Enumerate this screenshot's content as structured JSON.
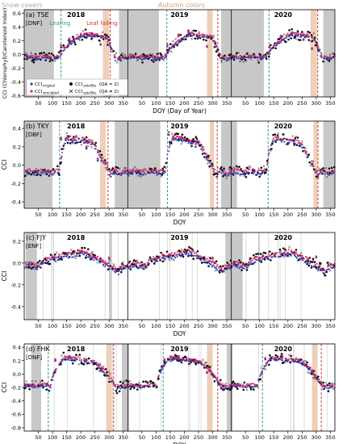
{
  "figure": {
    "top_labels": {
      "snow": "Snow covers",
      "autumn": "Autumn colors",
      "leafing": "Leafing",
      "falling": "Leaf falling"
    },
    "legend": {
      "original": "CCI",
      "original_sub": "original",
      "simulated": "CCI",
      "simulated_sub": "simulated",
      "sat_good": "CCI",
      "sat_good_sub": "satellite",
      "sat_good_qa": "(QA = 2)",
      "sat_bad": "CCI",
      "sat_bad_sub": "satellite",
      "sat_bad_qa": "(QA ≠ 2)"
    },
    "colors": {
      "original": "#2e3fbf",
      "simulated": "#e0245e",
      "satellite": "#111111",
      "snow_band": "#c8c8c8",
      "autumn_band": "#efcfb8",
      "leafing_line": "#2f9b82",
      "falling_line": "#d23b2b"
    }
  },
  "chart_data": [
    {
      "type": "scatter",
      "panel": "(a) TSE",
      "forest": "[DNF]",
      "ylabel": "CCI (Chlorophyll/Carotenoid Index)",
      "xlabel": "DOY (Day of Year)",
      "years": [
        "2018",
        "2019",
        "2020"
      ],
      "ylim": [
        -0.62,
        0.65
      ],
      "yticks": [
        -0.6,
        -0.4,
        -0.2,
        0.0,
        0.2,
        0.4,
        0.6
      ],
      "xticks": [
        50,
        100,
        150,
        200,
        250,
        300,
        350
      ],
      "snow": [
        [
          [
            1,
            105
          ],
          [
            335,
            365
          ]
        ],
        [
          [
            1,
            110
          ],
          [
            330,
            365
          ]
        ],
        [
          [
            1,
            115
          ],
          [
            325,
            365
          ]
        ]
      ],
      "autumn": [
        [
          [
            278,
            300
          ]
        ],
        [
          [
            280,
            300
          ]
        ],
        [
          [
            280,
            302
          ]
        ]
      ],
      "leafing": [
        130,
        138,
        133
      ],
      "falling": [
        304,
        318,
        305
      ],
      "curve": {
        "base": -0.02,
        "peak": 0.3,
        "green": 128,
        "maxd": 215,
        "senesce": 290,
        "fall": 310,
        "sharp": false
      },
      "series": [
        {
          "name": "CCIoriginal",
          "points": [
            [
              2018,
              130,
              0.1
            ],
            [
              2018,
              160,
              0.2
            ],
            [
              2018,
              200,
              0.27
            ],
            [
              2018,
              240,
              0.24
            ],
            [
              2018,
              270,
              0.14
            ],
            [
              2019,
              140,
              0.12
            ],
            [
              2019,
              180,
              0.27
            ],
            [
              2019,
              215,
              0.32
            ],
            [
              2019,
              250,
              0.25
            ],
            [
              2019,
              280,
              0.11
            ],
            [
              2020,
              135,
              0.1
            ],
            [
              2020,
              175,
              0.24
            ],
            [
              2020,
              215,
              0.3
            ],
            [
              2020,
              255,
              0.21
            ],
            [
              2020,
              285,
              0.08
            ]
          ]
        },
        {
          "name": "CCIsimulated",
          "points": [
            [
              2018,
              130,
              0.13
            ],
            [
              2018,
              160,
              0.23
            ],
            [
              2018,
              200,
              0.3
            ],
            [
              2018,
              240,
              0.26
            ],
            [
              2018,
              270,
              0.15
            ],
            [
              2019,
              140,
              0.15
            ],
            [
              2019,
              180,
              0.29
            ],
            [
              2019,
              215,
              0.34
            ],
            [
              2019,
              250,
              0.27
            ],
            [
              2019,
              280,
              0.12
            ],
            [
              2020,
              135,
              0.12
            ],
            [
              2020,
              175,
              0.27
            ],
            [
              2020,
              215,
              0.32
            ],
            [
              2020,
              255,
              0.22
            ],
            [
              2020,
              285,
              0.09
            ]
          ]
        }
      ]
    },
    {
      "type": "scatter",
      "panel": "(b) TKY",
      "forest": "[DBF]",
      "ylabel": "CCI",
      "xlabel": "DOY",
      "years": [
        "2018",
        "2019",
        "2020"
      ],
      "ylim": [
        -0.47,
        0.48
      ],
      "yticks": [
        -0.4,
        -0.2,
        0.0,
        0.2,
        0.4
      ],
      "xticks": [
        50,
        100,
        150,
        200,
        250,
        300,
        350
      ],
      "snow": [
        [
          [
            1,
            100
          ],
          [
            320,
            365
          ]
        ],
        [
          [
            1,
            115
          ],
          [
            330,
            365
          ]
        ],
        [
          [
            1,
            20
          ],
          [
            325,
            365
          ]
        ]
      ],
      "autumn": [
        [
          [
            268,
            288
          ]
        ],
        [
          [
            290,
            305
          ]
        ],
        [
          [
            290,
            305
          ]
        ]
      ],
      "leafing": [
        125,
        140,
        130
      ],
      "falling": [
        296,
        316,
        306
      ],
      "curve": {
        "base": -0.05,
        "peak": 0.3,
        "green": 125,
        "maxd": 150,
        "senesce": 240,
        "fall": 295,
        "sharp": false
      },
      "series": [
        {
          "name": "CCIoriginal",
          "points": [
            [
              2018,
              130,
              0.28
            ],
            [
              2018,
              170,
              0.25
            ],
            [
              2018,
              220,
              0.18
            ],
            [
              2018,
              260,
              0.05
            ],
            [
              2019,
              145,
              0.33
            ],
            [
              2019,
              190,
              0.28
            ],
            [
              2019,
              240,
              0.2
            ],
            [
              2019,
              285,
              0.05
            ]
          ]
        },
        {
          "name": "CCIsimulated",
          "points": [
            [
              2018,
              130,
              0.3
            ],
            [
              2018,
              170,
              0.27
            ],
            [
              2018,
              220,
              0.2
            ],
            [
              2018,
              260,
              0.07
            ],
            [
              2019,
              145,
              0.36
            ],
            [
              2019,
              190,
              0.31
            ],
            [
              2019,
              240,
              0.23
            ],
            [
              2019,
              285,
              0.08
            ]
          ]
        }
      ]
    },
    {
      "type": "scatter",
      "panel": "(c) FJY",
      "forest": "[ENF]",
      "ylabel": "CCI",
      "xlabel": "DOY",
      "years": [
        "2018",
        "2019",
        "2020"
      ],
      "ylim": [
        -0.52,
        0.28
      ],
      "yticks": [
        -0.4,
        -0.2,
        0.0,
        0.2
      ],
      "xticks": [
        50,
        100,
        150,
        200,
        250,
        300,
        350
      ],
      "snow": [
        [
          [
            5,
            45
          ],
          [
            300,
            310
          ]
        ],
        [
          [
            345,
            365
          ]
        ],
        [
          [
            1,
            40
          ],
          [
            95,
            100
          ]
        ]
      ],
      "autumn": [],
      "leafing": [],
      "falling": [],
      "curve": {
        "base": 0.0,
        "peak": 0.1,
        "green": 60,
        "maxd": 210,
        "senesce": 250,
        "fall": 320,
        "sharp": false
      },
      "series": [
        {
          "name": "CCIoriginal",
          "points": [
            [
              2018,
              100,
              0.05
            ],
            [
              2018,
              200,
              0.1
            ],
            [
              2018,
              300,
              0.04
            ],
            [
              2019,
              100,
              0.03
            ],
            [
              2019,
              200,
              0.1
            ],
            [
              2019,
              300,
              0.04
            ],
            [
              2020,
              100,
              0.02
            ],
            [
              2020,
              200,
              0.08
            ],
            [
              2020,
              300,
              0.05
            ]
          ]
        },
        {
          "name": "CCIsimulated",
          "points": [
            [
              2018,
              100,
              0.06
            ],
            [
              2018,
              200,
              0.11
            ],
            [
              2018,
              300,
              0.05
            ],
            [
              2019,
              100,
              0.04
            ],
            [
              2019,
              200,
              0.11
            ],
            [
              2019,
              300,
              0.05
            ],
            [
              2020,
              100,
              0.03
            ],
            [
              2020,
              200,
              0.09
            ],
            [
              2020,
              300,
              0.06
            ]
          ]
        }
      ]
    },
    {
      "type": "scatter",
      "panel": "(d) FHK",
      "forest": "[DNF]",
      "ylabel": "CCI",
      "xlabel": "DOY",
      "years": [
        "2018",
        "2019",
        "2020"
      ],
      "ylim": [
        -0.85,
        0.45
      ],
      "yticks": [
        -0.8,
        -0.6,
        -0.4,
        -0.2,
        0.0,
        0.2,
        0.4
      ],
      "xticks": [
        50,
        100,
        150,
        200,
        250,
        300,
        350
      ],
      "snow": [
        [
          [
            25,
            60
          ],
          [
            345,
            365
          ]
        ],
        [
          [
            1,
            5
          ],
          [
            350,
            365
          ]
        ],
        [
          [
            1,
            5
          ]
        ]
      ],
      "autumn": [
        [
          [
            290,
            310
          ]
        ],
        [
          [
            280,
            300
          ]
        ],
        [
          [
            285,
            305
          ]
        ]
      ],
      "leafing": [
        85,
        125,
        110
      ],
      "falling": [
        316,
        318,
        318
      ],
      "curve": {
        "base": -0.15,
        "peak": 0.25,
        "green": 95,
        "maxd": 140,
        "senesce": 230,
        "fall": 315,
        "sharp": true
      },
      "series": [
        {
          "name": "CCIoriginal",
          "points": [
            [
              2018,
              110,
              0.2
            ],
            [
              2018,
              160,
              0.25
            ],
            [
              2018,
              220,
              0.2
            ],
            [
              2018,
              270,
              0.05
            ],
            [
              2019,
              130,
              0.2
            ],
            [
              2019,
              180,
              0.25
            ],
            [
              2019,
              240,
              0.17
            ],
            [
              2019,
              280,
              0.02
            ],
            [
              2020,
              120,
              0.22
            ],
            [
              2020,
              180,
              0.26
            ],
            [
              2020,
              240,
              0.2
            ],
            [
              2020,
              285,
              0.05
            ]
          ]
        },
        {
          "name": "CCIsimulated",
          "points": [
            [
              2018,
              110,
              0.22
            ],
            [
              2018,
              160,
              0.27
            ],
            [
              2018,
              220,
              0.22
            ],
            [
              2018,
              270,
              0.06
            ],
            [
              2019,
              130,
              0.22
            ],
            [
              2019,
              180,
              0.27
            ],
            [
              2019,
              240,
              0.19
            ],
            [
              2019,
              280,
              0.03
            ],
            [
              2020,
              120,
              0.24
            ],
            [
              2020,
              180,
              0.28
            ],
            [
              2020,
              240,
              0.22
            ],
            [
              2020,
              285,
              0.06
            ]
          ]
        }
      ]
    }
  ]
}
